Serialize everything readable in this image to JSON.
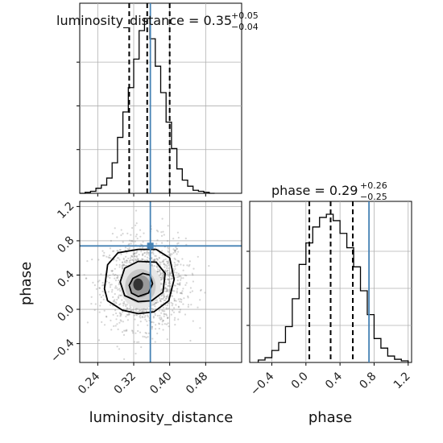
{
  "chart_data": [
    {
      "type": "histogram",
      "panel": "top-left",
      "parameter": "luminosity_distance",
      "title": {
        "main": "luminosity_distance = 0.35",
        "plus": "+0.05",
        "minus": "−0.04"
      },
      "xlim": [
        0.2,
        0.56
      ],
      "bin_edges": [
        0.2,
        0.212,
        0.224,
        0.236,
        0.248,
        0.26,
        0.272,
        0.284,
        0.296,
        0.308,
        0.32,
        0.332,
        0.344,
        0.356,
        0.368,
        0.38,
        0.392,
        0.404,
        0.416,
        0.428,
        0.44,
        0.452,
        0.464,
        0.476,
        0.488,
        0.5
      ],
      "counts": [
        0,
        1,
        2,
        5,
        8,
        15,
        30,
        55,
        80,
        104,
        132,
        160,
        172,
        152,
        125,
        99,
        70,
        44,
        24,
        13,
        7,
        3,
        2,
        1,
        0
      ],
      "quantiles": [
        0.31,
        0.35,
        0.4
      ],
      "truth": 0.357,
      "colors": {
        "hist": "#000000",
        "quantile": "#000000",
        "truth": "#4682b4",
        "grid": "#b0b0b0"
      }
    },
    {
      "type": "histogram",
      "panel": "bottom-right",
      "parameter": "phase",
      "title": {
        "main": "phase = 0.29",
        "plus": "+0.26",
        "minus": "−0.25"
      },
      "xlabel": "phase",
      "xlim": [
        -0.66,
        1.24
      ],
      "xticks": [
        -0.4,
        0.0,
        0.4,
        0.8,
        1.2
      ],
      "xtick_labels": [
        "−0.4",
        "0.0",
        "0.4",
        "0.8",
        "1.2"
      ],
      "bin_edges": [
        -0.56,
        -0.48,
        -0.4,
        -0.32,
        -0.24,
        -0.16,
        -0.08,
        0.0,
        0.08,
        0.16,
        0.24,
        0.32,
        0.4,
        0.48,
        0.56,
        0.64,
        0.72,
        0.8,
        0.88,
        0.96,
        1.04,
        1.12,
        1.2
      ],
      "counts": [
        3,
        6,
        15,
        25,
        45,
        80,
        123,
        150,
        170,
        182,
        186,
        178,
        162,
        144,
        120,
        90,
        60,
        30,
        18,
        8,
        4,
        2
      ],
      "quantiles": [
        0.04,
        0.29,
        0.55
      ],
      "truth": 0.74,
      "colors": {
        "hist": "#000000",
        "quantile": "#000000",
        "truth": "#4682b4",
        "grid": "#b0b0b0"
      }
    },
    {
      "type": "scatter",
      "panel": "bottom-left",
      "xlabel": "luminosity_distance",
      "ylabel": "phase",
      "xlim": [
        0.2,
        0.56
      ],
      "ylim": [
        -0.62,
        1.26
      ],
      "xticks": [
        0.24,
        0.32,
        0.4,
        0.48
      ],
      "xtick_labels": [
        "0.24",
        "0.32",
        "0.40",
        "0.48"
      ],
      "yticks": [
        -0.4,
        0.0,
        0.4,
        0.8,
        1.2
      ],
      "ytick_labels": [
        "−0.4",
        "0.0",
        "0.4",
        "0.8",
        "1.2"
      ],
      "center": [
        0.345,
        0.3
      ],
      "spread": [
        0.045,
        0.26
      ],
      "truth": [
        0.357,
        0.74
      ],
      "contours": [
        {
          "level": "outer",
          "x": [
            0.255,
            0.262,
            0.285,
            0.33,
            0.37,
            0.4,
            0.41,
            0.398,
            0.365,
            0.33,
            0.295,
            0.262,
            0.255
          ],
          "y": [
            0.24,
            0.52,
            0.66,
            0.7,
            0.7,
            0.6,
            0.35,
            0.1,
            -0.03,
            -0.05,
            -0.01,
            0.1,
            0.24
          ]
        },
        {
          "level": "middle",
          "x": [
            0.29,
            0.3,
            0.33,
            0.37,
            0.39,
            0.385,
            0.36,
            0.33,
            0.3,
            0.29
          ],
          "y": [
            0.32,
            0.48,
            0.56,
            0.55,
            0.42,
            0.2,
            0.1,
            0.09,
            0.16,
            0.32
          ]
        },
        {
          "level": "inner",
          "x": [
            0.31,
            0.318,
            0.34,
            0.356,
            0.362,
            0.353,
            0.33,
            0.315,
            0.31
          ],
          "y": [
            0.28,
            0.36,
            0.42,
            0.4,
            0.3,
            0.19,
            0.15,
            0.19,
            0.28
          ]
        }
      ],
      "shading": [
        {
          "cx": 0.335,
          "cy": 0.28,
          "rx": 0.045,
          "ry": 0.27,
          "color": "#e6e6e6"
        },
        {
          "cx": 0.335,
          "cy": 0.27,
          "rx": 0.034,
          "ry": 0.2,
          "color": "#c9c9c9"
        },
        {
          "cx": 0.335,
          "cy": 0.27,
          "rx": 0.022,
          "ry": 0.13,
          "color": "#9a9a9a"
        },
        {
          "cx": 0.33,
          "cy": 0.29,
          "rx": 0.011,
          "ry": 0.07,
          "color": "#333333"
        }
      ],
      "colors": {
        "points": "#888888",
        "contour": "#000000",
        "truth": "#4682b4",
        "grid": "#b0b0b0"
      }
    }
  ]
}
